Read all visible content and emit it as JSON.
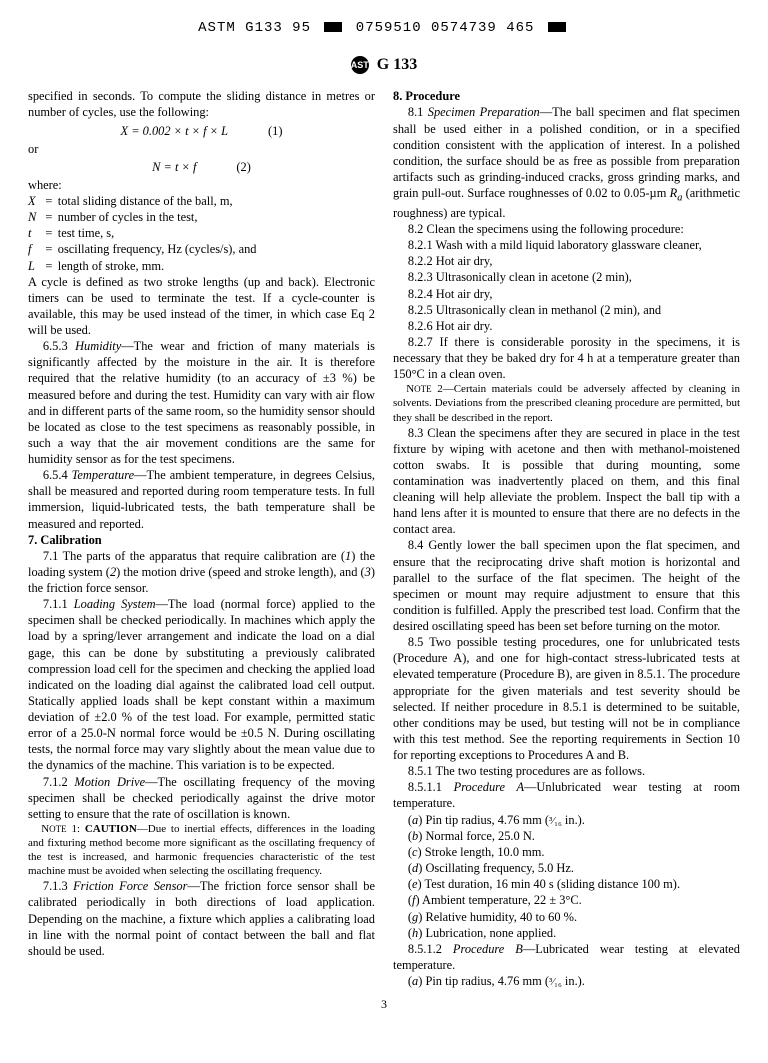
{
  "header": {
    "code_line": "ASTM G133 95 ▮ 0759510 0574739 465 ▮",
    "std_label": "G 133"
  },
  "left": {
    "intro1": "specified in seconds. To compute the sliding distance in metres or number of cycles, use the following:",
    "eq1": "X = 0.002 × t × f × L",
    "eq1_num": "(1)",
    "or": "or",
    "eq2": "N = t × f",
    "eq2_num": "(2)",
    "where": "where:",
    "defs": {
      "X": "total sliding distance of the ball, m,",
      "N": "number of cycles in the test,",
      "t": "test time, s,",
      "f": "oscillating frequency, Hz (cycles/s), and",
      "L": "length of stroke, mm."
    },
    "cycle_para": "A cycle is defined as two stroke lengths (up and back). Electronic timers can be used to terminate the test. If a cycle-counter is available, this may be used instead of the timer, in which case Eq 2 will be used.",
    "p653_label": "6.5.3 ",
    "p653_title": "Humidity",
    "p653_body": "—The wear and friction of many materials is significantly affected by the moisture in the air. It is therefore required that the relative humidity (to an accuracy of ±3 %) be measured before and during the test. Humidity can vary with air flow and in different parts of the same room, so the humidity sensor should be located as close to the test specimens as reasonably possible, in such a way that the air movement conditions are the same for humidity sensor as for the test specimens.",
    "p654_label": "6.5.4 ",
    "p654_title": "Temperature",
    "p654_body": "—The ambient temperature, in degrees Celsius, shall be measured and reported during room temperature tests. In full immersion, liquid-lubricated tests, the bath temperature shall be measured and reported.",
    "sec7": "7. Calibration",
    "p71": "7.1 The parts of the apparatus that require calibration are (1) the loading system (2) the motion drive (speed and stroke length), and (3) the friction force sensor.",
    "p711_label": "7.1.1 ",
    "p711_title": "Loading System",
    "p711_body": "—The load (normal force) applied to the specimen shall be checked periodically. In machines which apply the load by a spring/lever arrangement and indicate the load on a dial gage, this can be done by substituting a previously calibrated compression load cell for the specimen and checking the applied load indicated on the loading dial against the calibrated load cell output. Statically applied loads shall be kept constant within a maximum deviation of ±2.0 % of the test load. For example, permitted static error of a 25.0-N normal force would be ±0.5 N. During oscillating tests, the normal force may vary slightly about the mean value due to the dynamics of the machine. This variation is to be expected.",
    "p712_label": "7.1.2 ",
    "p712_title": "Motion Drive",
    "p712_body": "—The oscillating frequency of the moving specimen shall be checked periodically against the drive motor setting to ensure that the rate of oscillation is known.",
    "note1_label": "Note 1: CAUTION—",
    "note1_body": "Due to inertial effects, differences in the loading and fixturing method become more significant as the oscillating frequency of the test is increased, and harmonic frequencies characteristic of the test machine must be avoided when selecting the oscillating frequency.",
    "p713_label": "7.1.3 ",
    "p713_title": "Friction Force Sensor",
    "p713_body": "—The friction force sensor shall be calibrated periodically in both directions of load application. Depending on the machine, a fixture which applies a calibrating load in line with the normal point of contact between the ball and flat should be used."
  },
  "right": {
    "sec8": "8. Procedure",
    "p81_label": "8.1 ",
    "p81_title": "Specimen Preparation",
    "p81_body": "—The ball specimen and flat specimen shall be used either in a polished condition, or in a specified condition consistent with the application of interest. In a polished condition, the surface should be as free as possible from preparation artifacts such as grinding-induced cracks, gross grinding marks, and grain pull-out. Surface roughnesses of 0.02 to 0.05-µm Rₐ (arithmetic roughness) are typical.",
    "p82": "8.2 Clean the specimens using the following procedure:",
    "p821": "8.2.1 Wash with a mild liquid laboratory glassware cleaner,",
    "p822": "8.2.2 Hot air dry,",
    "p823": "8.2.3 Ultrasonically clean in acetone (2 min),",
    "p824": "8.2.4 Hot air dry,",
    "p825": "8.2.5 Ultrasonically clean in methanol (2 min), and",
    "p826": "8.2.6 Hot air dry.",
    "p827": "8.2.7 If there is considerable porosity in the specimens, it is necessary that they be baked dry for 4 h at a temperature greater than 150°C in a clean oven.",
    "note2_label": "Note 2—",
    "note2_body": "Certain materials could be adversely affected by cleaning in solvents. Deviations from the prescribed cleaning procedure are permitted, but they shall be described in the report.",
    "p83": "8.3 Clean the specimens after they are secured in place in the test fixture by wiping with acetone and then with methanol-moistened cotton swabs. It is possible that during mounting, some contamination was inadvertently placed on them, and this final cleaning will help alleviate the problem. Inspect the ball tip with a hand lens after it is mounted to ensure that there are no defects in the contact area.",
    "p84": "8.4 Gently lower the ball specimen upon the flat specimen, and ensure that the reciprocating drive shaft motion is horizontal and parallel to the surface of the flat specimen. The height of the specimen or mount may require adjustment to ensure that this condition is fulfilled. Apply the prescribed test load. Confirm that the desired oscillating speed has been set before turning on the motor.",
    "p85": "8.5 Two possible testing procedures, one for unlubricated tests (Procedure A), and one for high-contact stress-lubricated tests at elevated temperature (Procedure B), are given in 8.5.1. The procedure appropriate for the given materials and test severity should be selected. If neither procedure in 8.5.1 is determined to be suitable, other conditions may be used, but testing will not be in compliance with this test method. See the reporting requirements in Section 10 for reporting exceptions to Procedures A and B.",
    "p851": "8.5.1 The two testing procedures are as follows.",
    "p8511_label": "8.5.1.1 ",
    "p8511_title": "Procedure A",
    "p8511_body": "—Unlubricated wear testing at room temperature.",
    "pa_a": "(a) Pin tip radius, 4.76 mm (³⁄₁₆ in.).",
    "pa_b": "(b) Normal force, 25.0 N.",
    "pa_c": "(c) Stroke length, 10.0 mm.",
    "pa_d": "(d) Oscillating frequency, 5.0 Hz.",
    "pa_e": "(e) Test duration, 16 min 40 s (sliding distance 100 m).",
    "pa_f": "(f) Ambient temperature, 22 ± 3°C.",
    "pa_g": "(g) Relative humidity, 40 to 60 %.",
    "pa_h": "(h) Lubrication, none applied.",
    "p8512_label": "8.5.1.2 ",
    "p8512_title": "Procedure B",
    "p8512_body": "—Lubricated wear testing at elevated temperature.",
    "pb_a": "(a) Pin tip radius, 4.76 mm (³⁄₁₆ in.)."
  },
  "page_number": "3"
}
